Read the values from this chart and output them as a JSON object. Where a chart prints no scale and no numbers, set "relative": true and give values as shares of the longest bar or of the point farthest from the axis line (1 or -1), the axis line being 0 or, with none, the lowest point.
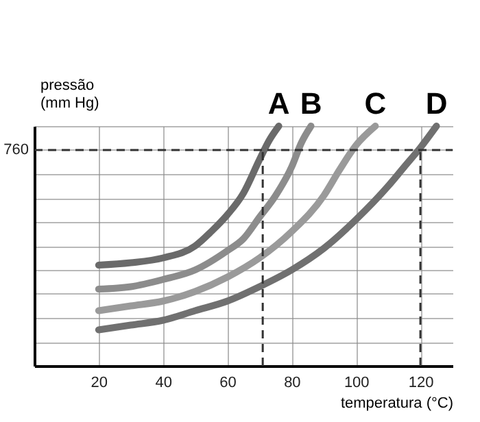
{
  "chart_data": {
    "type": "line",
    "relative": true,
    "xlabel": "temperatura (°C)",
    "ylabel": "pressão\n(mm Hg)",
    "xlim": [
      0,
      130
    ],
    "xticks": [
      20,
      40,
      60,
      80,
      100,
      120
    ],
    "grid": true,
    "legend": false,
    "line_style": "solid",
    "marker": "none",
    "annotations": [
      "760"
    ],
    "ref_lines": [
      {
        "axis": "y",
        "value": 0.9,
        "line_style": "dashed",
        "color": "#333333"
      },
      {
        "axis": "x",
        "value": 71,
        "line_style": "dashed",
        "color": "#333333"
      },
      {
        "axis": "x",
        "value": 120,
        "line_style": "dashed",
        "color": "#333333"
      }
    ],
    "series": [
      {
        "name": "A",
        "color": "#6a6a6a",
        "x": [
          20,
          30,
          40,
          50,
          55,
          60,
          65,
          70,
          73,
          76
        ],
        "values": [
          0.42,
          0.43,
          0.45,
          0.5,
          0.56,
          0.63,
          0.72,
          0.86,
          0.94,
          1
        ]
      },
      {
        "name": "B",
        "color": "#8c8c8c",
        "x": [
          20,
          30,
          40,
          50,
          60,
          65,
          70,
          75,
          80,
          83,
          86
        ],
        "values": [
          0.32,
          0.33,
          0.36,
          0.4,
          0.48,
          0.53,
          0.62,
          0.71,
          0.83,
          0.93,
          1
        ]
      },
      {
        "name": "C",
        "color": "#9a9a9a",
        "x": [
          20,
          30,
          40,
          50,
          60,
          70,
          80,
          90,
          95,
          100,
          106
        ],
        "values": [
          0.23,
          0.25,
          0.27,
          0.31,
          0.37,
          0.45,
          0.56,
          0.71,
          0.82,
          0.92,
          1
        ]
      },
      {
        "name": "D",
        "color": "#707070",
        "x": [
          20,
          30,
          40,
          50,
          60,
          70,
          80,
          90,
          100,
          110,
          115,
          120,
          125
        ],
        "values": [
          0.15,
          0.17,
          0.19,
          0.23,
          0.27,
          0.33,
          0.4,
          0.49,
          0.61,
          0.75,
          0.83,
          0.91,
          1
        ]
      }
    ]
  }
}
